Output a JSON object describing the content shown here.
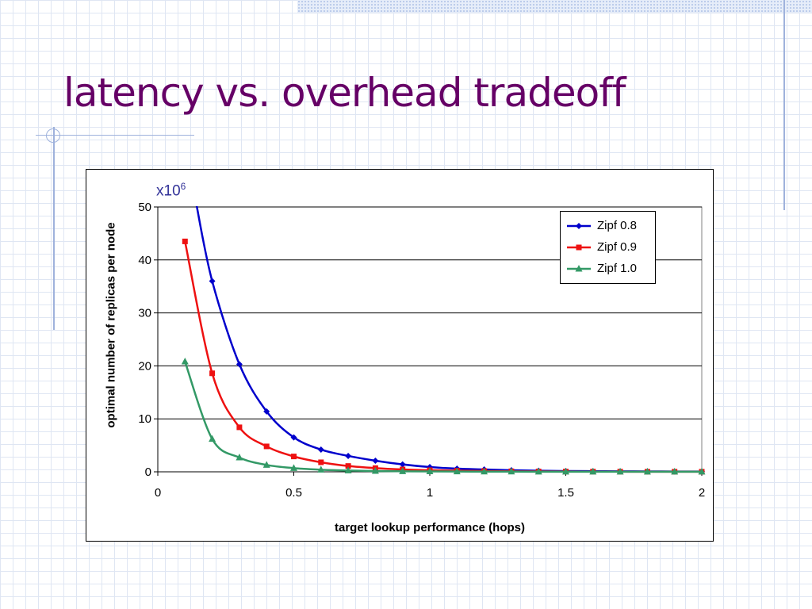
{
  "slide": {
    "title": "latency vs. overhead tradeoff"
  },
  "chart_data": {
    "type": "line",
    "title": "",
    "xlabel": "target lookup performance (hops)",
    "ylabel": "optimal number of replicas per node",
    "y_multiplier_base": "x10",
    "y_multiplier_exponent": "6",
    "xlim": [
      0,
      2
    ],
    "ylim": [
      0,
      50
    ],
    "x_ticks": [
      0,
      0.5,
      1,
      1.5,
      2
    ],
    "x_tick_labels": [
      "0",
      "0.5",
      "1",
      "1.5",
      "2"
    ],
    "y_ticks": [
      0,
      10,
      20,
      30,
      40,
      50
    ],
    "y_tick_labels": [
      "0",
      "10",
      "20",
      "30",
      "40",
      "50"
    ],
    "grid": "horizontal",
    "legend_position": "top-right",
    "x": [
      0.1,
      0.2,
      0.3,
      0.4,
      0.5,
      0.6,
      0.7,
      0.8,
      0.9,
      1.0,
      1.1,
      1.2,
      1.3,
      1.4,
      1.5,
      1.6,
      1.7,
      1.8,
      1.9,
      2.0
    ],
    "series": [
      {
        "name": "Zipf 0.8",
        "color": "#0000cc",
        "marker": "diamond",
        "start": [
          0.14,
          51
        ],
        "values": [
          null,
          36,
          20.3,
          11.4,
          6.5,
          4.2,
          3.0,
          2.1,
          1.4,
          0.9,
          0.6,
          0.45,
          0.3,
          0.2,
          0.15,
          0.12,
          0.1,
          0.08,
          0.06,
          0.05
        ]
      },
      {
        "name": "Zipf 0.9",
        "color": "#ee1111",
        "marker": "square",
        "values": [
          43.5,
          18.6,
          8.4,
          4.8,
          2.9,
          1.8,
          1.1,
          0.7,
          0.45,
          0.3,
          0.2,
          0.15,
          0.1,
          0.07,
          0.05,
          0.04,
          0.03,
          0.02,
          0.02,
          0.02
        ]
      },
      {
        "name": "Zipf 1.0",
        "color": "#339966",
        "marker": "triangle",
        "values": [
          20.8,
          6.2,
          2.7,
          1.3,
          0.7,
          0.4,
          0.25,
          0.15,
          0.1,
          0.07,
          0.05,
          0.04,
          0.03,
          0.02,
          0.02,
          0.01,
          0.01,
          0.01,
          0.01,
          0.01
        ]
      }
    ]
  }
}
